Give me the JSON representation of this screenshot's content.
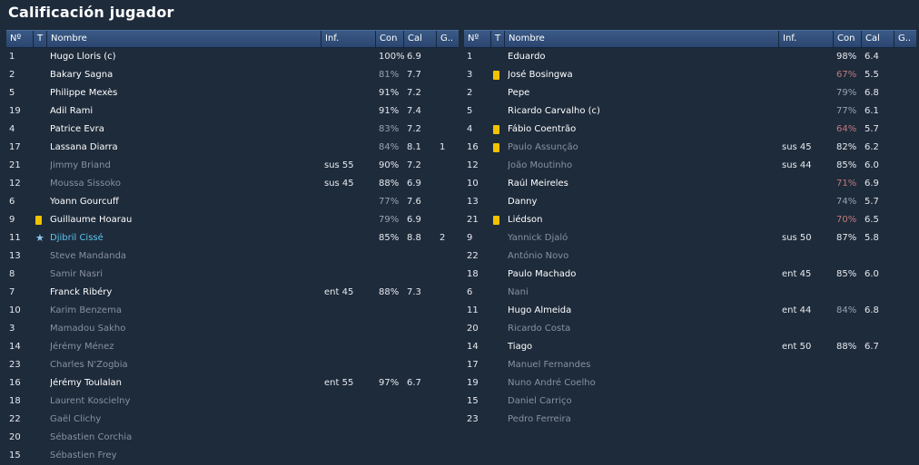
{
  "title": "Calificación jugador",
  "columns": {
    "num": "Nº",
    "t": "T",
    "name": "Nombre",
    "inf": "Inf.",
    "con": "Con",
    "cal": "Cal",
    "g": "G.."
  },
  "teams": [
    {
      "players": [
        {
          "num": "1",
          "name": "Hugo Lloris (c)",
          "inf": "",
          "con": "100%",
          "con_style": "normal",
          "cal": "6.9",
          "g": "",
          "status": "normal",
          "icon": ""
        },
        {
          "num": "2",
          "name": "Bakary Sagna",
          "inf": "",
          "con": "81%",
          "con_style": "dim",
          "cal": "7.7",
          "g": "",
          "status": "normal",
          "icon": ""
        },
        {
          "num": "5",
          "name": "Philippe Mexès",
          "inf": "",
          "con": "91%",
          "con_style": "normal",
          "cal": "7.2",
          "g": "",
          "status": "normal",
          "icon": ""
        },
        {
          "num": "19",
          "name": "Adil Rami",
          "inf": "",
          "con": "91%",
          "con_style": "normal",
          "cal": "7.4",
          "g": "",
          "status": "normal",
          "icon": ""
        },
        {
          "num": "4",
          "name": "Patrice Evra",
          "inf": "",
          "con": "83%",
          "con_style": "dim",
          "cal": "7.2",
          "g": "",
          "status": "normal",
          "icon": ""
        },
        {
          "num": "17",
          "name": "Lassana Diarra",
          "inf": "",
          "con": "84%",
          "con_style": "dim",
          "cal": "8.1",
          "g": "1",
          "status": "normal",
          "icon": ""
        },
        {
          "num": "21",
          "name": "Jimmy Briand",
          "inf": "sus 55",
          "con": "90%",
          "con_style": "normal",
          "cal": "7.2",
          "g": "",
          "status": "dim",
          "icon": ""
        },
        {
          "num": "12",
          "name": "Moussa Sissoko",
          "inf": "sus 45",
          "con": "88%",
          "con_style": "normal",
          "cal": "6.9",
          "g": "",
          "status": "dim",
          "icon": ""
        },
        {
          "num": "6",
          "name": "Yoann Gourcuff",
          "inf": "",
          "con": "77%",
          "con_style": "dim",
          "cal": "7.6",
          "g": "",
          "status": "normal",
          "icon": ""
        },
        {
          "num": "9",
          "name": "Guillaume Hoarau",
          "inf": "",
          "con": "79%",
          "con_style": "dim",
          "cal": "6.9",
          "g": "",
          "status": "normal",
          "icon": "yellow-card"
        },
        {
          "num": "11",
          "name": "Djibril Cissé",
          "inf": "",
          "con": "85%",
          "con_style": "normal",
          "cal": "8.8",
          "g": "2",
          "status": "star",
          "icon": "star"
        },
        {
          "num": "13",
          "name": "Steve Mandanda",
          "inf": "",
          "con": "",
          "con_style": "normal",
          "cal": "",
          "g": "",
          "status": "dim",
          "icon": ""
        },
        {
          "num": "8",
          "name": "Samir Nasri",
          "inf": "",
          "con": "",
          "con_style": "normal",
          "cal": "",
          "g": "",
          "status": "dim",
          "icon": ""
        },
        {
          "num": "7",
          "name": "Franck Ribéry",
          "inf": "ent 45",
          "con": "88%",
          "con_style": "normal",
          "cal": "7.3",
          "g": "",
          "status": "normal",
          "icon": ""
        },
        {
          "num": "10",
          "name": "Karim Benzema",
          "inf": "",
          "con": "",
          "con_style": "normal",
          "cal": "",
          "g": "",
          "status": "dim",
          "icon": ""
        },
        {
          "num": "3",
          "name": "Mamadou Sakho",
          "inf": "",
          "con": "",
          "con_style": "normal",
          "cal": "",
          "g": "",
          "status": "dim",
          "icon": ""
        },
        {
          "num": "14",
          "name": "Jérémy Ménez",
          "inf": "",
          "con": "",
          "con_style": "normal",
          "cal": "",
          "g": "",
          "status": "dim",
          "icon": ""
        },
        {
          "num": "23",
          "name": "Charles N'Zogbia",
          "inf": "",
          "con": "",
          "con_style": "normal",
          "cal": "",
          "g": "",
          "status": "dim",
          "icon": ""
        },
        {
          "num": "16",
          "name": "Jérémy Toulalan",
          "inf": "ent 55",
          "con": "97%",
          "con_style": "normal",
          "cal": "6.7",
          "g": "",
          "status": "normal",
          "icon": ""
        },
        {
          "num": "18",
          "name": "Laurent Koscielny",
          "inf": "",
          "con": "",
          "con_style": "normal",
          "cal": "",
          "g": "",
          "status": "dim",
          "icon": ""
        },
        {
          "num": "22",
          "name": "Gaël Clichy",
          "inf": "",
          "con": "",
          "con_style": "normal",
          "cal": "",
          "g": "",
          "status": "dim",
          "icon": ""
        },
        {
          "num": "20",
          "name": "Sébastien Corchia",
          "inf": "",
          "con": "",
          "con_style": "normal",
          "cal": "",
          "g": "",
          "status": "dim",
          "icon": ""
        },
        {
          "num": "15",
          "name": "Sébastien Frey",
          "inf": "",
          "con": "",
          "con_style": "normal",
          "cal": "",
          "g": "",
          "status": "dim",
          "icon": ""
        }
      ]
    },
    {
      "players": [
        {
          "num": "1",
          "name": "Eduardo",
          "inf": "",
          "con": "98%",
          "con_style": "normal",
          "cal": "6.4",
          "g": "",
          "status": "normal",
          "icon": ""
        },
        {
          "num": "3",
          "name": "José Bosingwa",
          "inf": "",
          "con": "67%",
          "con_style": "low",
          "cal": "5.5",
          "g": "",
          "status": "normal",
          "icon": "yellow-card"
        },
        {
          "num": "2",
          "name": "Pepe",
          "inf": "",
          "con": "79%",
          "con_style": "dim",
          "cal": "6.8",
          "g": "",
          "status": "normal",
          "icon": ""
        },
        {
          "num": "5",
          "name": "Ricardo Carvalho (c)",
          "inf": "",
          "con": "77%",
          "con_style": "dim",
          "cal": "6.1",
          "g": "",
          "status": "normal",
          "icon": ""
        },
        {
          "num": "4",
          "name": "Fábio Coentrão",
          "inf": "",
          "con": "64%",
          "con_style": "low",
          "cal": "5.7",
          "g": "",
          "status": "normal",
          "icon": "yellow-card"
        },
        {
          "num": "16",
          "name": "Paulo Assunção",
          "inf": "sus 45",
          "con": "82%",
          "con_style": "normal",
          "cal": "6.2",
          "g": "",
          "status": "dim",
          "icon": "yellow-card"
        },
        {
          "num": "12",
          "name": "João Moutinho",
          "inf": "sus 44",
          "con": "85%",
          "con_style": "normal",
          "cal": "6.0",
          "g": "",
          "status": "dim",
          "icon": ""
        },
        {
          "num": "10",
          "name": "Raúl Meireles",
          "inf": "",
          "con": "71%",
          "con_style": "low",
          "cal": "6.9",
          "g": "",
          "status": "normal",
          "icon": ""
        },
        {
          "num": "13",
          "name": "Danny",
          "inf": "",
          "con": "74%",
          "con_style": "dim",
          "cal": "5.7",
          "g": "",
          "status": "normal",
          "icon": ""
        },
        {
          "num": "21",
          "name": "Liédson",
          "inf": "",
          "con": "70%",
          "con_style": "low",
          "cal": "6.5",
          "g": "",
          "status": "normal",
          "icon": "yellow-card"
        },
        {
          "num": "9",
          "name": "Yannick Djaló",
          "inf": "sus 50",
          "con": "87%",
          "con_style": "normal",
          "cal": "5.8",
          "g": "",
          "status": "dim",
          "icon": ""
        },
        {
          "num": "22",
          "name": "António Novo",
          "inf": "",
          "con": "",
          "con_style": "normal",
          "cal": "",
          "g": "",
          "status": "dim",
          "icon": ""
        },
        {
          "num": "18",
          "name": "Paulo Machado",
          "inf": "ent 45",
          "con": "85%",
          "con_style": "normal",
          "cal": "6.0",
          "g": "",
          "status": "normal",
          "icon": ""
        },
        {
          "num": "6",
          "name": "Nani",
          "inf": "",
          "con": "",
          "con_style": "normal",
          "cal": "",
          "g": "",
          "status": "dim",
          "icon": ""
        },
        {
          "num": "11",
          "name": "Hugo Almeida",
          "inf": "ent 44",
          "con": "84%",
          "con_style": "dim",
          "cal": "6.8",
          "g": "",
          "status": "normal",
          "icon": ""
        },
        {
          "num": "20",
          "name": "Ricardo Costa",
          "inf": "",
          "con": "",
          "con_style": "normal",
          "cal": "",
          "g": "",
          "status": "dim",
          "icon": ""
        },
        {
          "num": "14",
          "name": "Tiago",
          "inf": "ent 50",
          "con": "88%",
          "con_style": "normal",
          "cal": "6.7",
          "g": "",
          "status": "normal",
          "icon": ""
        },
        {
          "num": "17",
          "name": "Manuel Fernandes",
          "inf": "",
          "con": "",
          "con_style": "normal",
          "cal": "",
          "g": "",
          "status": "dim",
          "icon": ""
        },
        {
          "num": "19",
          "name": "Nuno André Coelho",
          "inf": "",
          "con": "",
          "con_style": "normal",
          "cal": "",
          "g": "",
          "status": "dim",
          "icon": ""
        },
        {
          "num": "15",
          "name": "Daniel Carriço",
          "inf": "",
          "con": "",
          "con_style": "normal",
          "cal": "",
          "g": "",
          "status": "dim",
          "icon": ""
        },
        {
          "num": "23",
          "name": "Pedro Ferreira",
          "inf": "",
          "con": "",
          "con_style": "normal",
          "cal": "",
          "g": "",
          "status": "dim",
          "icon": ""
        }
      ]
    }
  ]
}
